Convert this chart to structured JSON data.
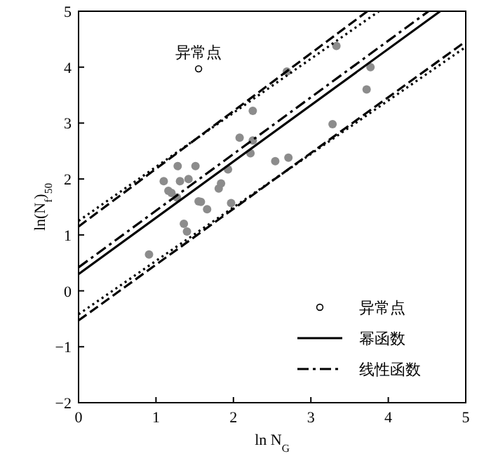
{
  "chart_data": {
    "type": "scatter",
    "xlabel": "ln N$_{G}$",
    "ylabel": "ln(N$_{f}$)$_{50}$",
    "xlim": [
      0,
      5
    ],
    "ylim": [
      -2,
      5
    ],
    "xticks": [
      0,
      1,
      2,
      3,
      4,
      5
    ],
    "yticks": [
      -2,
      -1,
      0,
      1,
      2,
      3,
      4,
      5
    ],
    "grid": false,
    "legend": "bottom right",
    "annotations": [
      {
        "text": "异常点",
        "x": 1.55,
        "y": 3.97
      }
    ],
    "series": [
      {
        "color": "#8c8c8c",
        "marker": "circle",
        "x": [
          1.1,
          1.28,
          1.51,
          1.31,
          1.42,
          1.16,
          1.2,
          1.27,
          1.55,
          1.58,
          1.66,
          1.81,
          1.84,
          1.93,
          1.97,
          2.08,
          2.25,
          2.25,
          2.22,
          2.54,
          2.71,
          2.69,
          3.28,
          3.33,
          3.72,
          3.77,
          1.36,
          1.4,
          0.91
        ],
        "values": [
          1.96,
          2.23,
          2.23,
          1.96,
          2.0,
          1.79,
          1.75,
          1.67,
          1.6,
          1.59,
          1.46,
          1.83,
          1.92,
          2.17,
          1.57,
          2.74,
          3.22,
          2.69,
          2.46,
          2.32,
          2.38,
          3.92,
          2.98,
          4.38,
          3.6,
          4.0,
          1.2,
          1.06,
          0.65
        ]
      },
      {
        "name": "异常点",
        "color": "#000000",
        "marker": "open circle",
        "x": [
          1.55
        ],
        "values": [
          3.97
        ]
      },
      {
        "type": "line",
        "name": "幂函数",
        "color": "#000000",
        "line_style": "solid",
        "x": [
          0,
          4.67
        ],
        "values": [
          0.3,
          5
        ]
      },
      {
        "type": "line",
        "name": "线性函数",
        "color": "#000000",
        "line_style": "dashdot",
        "x": [
          0,
          4.52
        ],
        "values": [
          0.42,
          5
        ]
      },
      {
        "type": "line",
        "color": "#000000",
        "line_style": "dashed",
        "x": [
          0,
          3.73
        ],
        "values": [
          1.15,
          5
        ]
      },
      {
        "type": "line",
        "color": "#000000",
        "line_style": "dotted",
        "x": [
          0,
          3.88
        ],
        "values": [
          1.25,
          5
        ]
      },
      {
        "type": "line",
        "color": "#000000",
        "line_style": "dashed",
        "x": [
          0,
          5
        ],
        "values": [
          -0.53,
          4.46
        ]
      },
      {
        "type": "line",
        "color": "#000000",
        "line_style": "dotted",
        "x": [
          0,
          5
        ],
        "values": [
          -0.42,
          4.36
        ]
      }
    ]
  }
}
